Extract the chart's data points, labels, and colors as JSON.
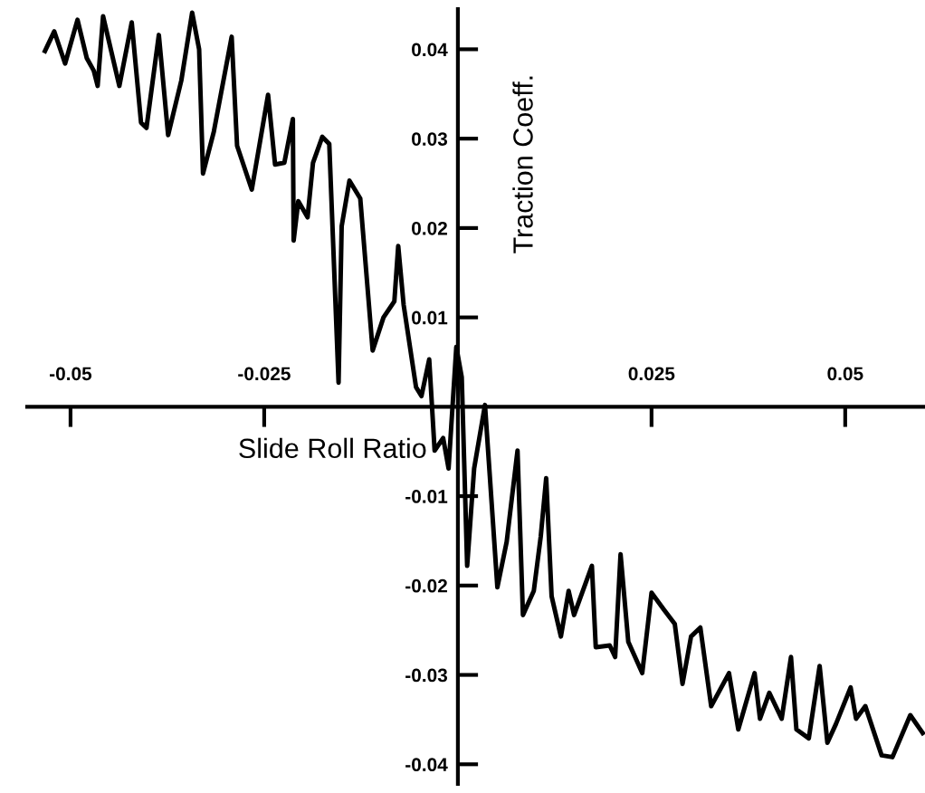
{
  "chart_data": {
    "type": "line",
    "xlabel": "Slide Roll Ratio",
    "ylabel": "Traction Coeff.",
    "xlim": [
      -0.0556,
      0.0603
    ],
    "ylim": [
      -0.0422,
      0.0445
    ],
    "xticks": [
      -0.05,
      -0.025,
      0.025,
      0.05
    ],
    "yticks": [
      -0.04,
      -0.03,
      -0.02,
      -0.01,
      0.01,
      0.02,
      0.03,
      0.04
    ],
    "grid": false,
    "marker": "none",
    "line_style": "solid",
    "series": [
      {
        "color": "#000000",
        "x": [
          -0.0533,
          -0.0521,
          -0.0507,
          -0.0491,
          -0.0479,
          -0.047,
          -0.0465,
          -0.0458,
          -0.0437,
          -0.0421,
          -0.0409,
          -0.0402,
          -0.0386,
          -0.0374,
          -0.0357,
          -0.0343,
          -0.0334,
          -0.0329,
          -0.0315,
          -0.0292,
          -0.0285,
          -0.0266,
          -0.0245,
          -0.0236,
          -0.0224,
          -0.0213,
          -0.0212,
          -0.0206,
          -0.0194,
          -0.0187,
          -0.0175,
          -0.0166,
          -0.0154,
          -0.015,
          -0.014,
          -0.0126,
          -0.011,
          -0.0096,
          -0.0082,
          -0.0077,
          -0.007,
          -0.0054,
          -0.0047,
          -0.0037,
          -0.003,
          -0.0019,
          -0.0012,
          -0.0002,
          0.0005,
          0.0012,
          0.0021,
          0.0035,
          0.0051,
          0.0063,
          0.0077,
          0.0084,
          0.0098,
          0.0107,
          0.0114,
          0.0121,
          0.0133,
          0.0143,
          0.015,
          0.0173,
          0.0178,
          0.0196,
          0.0203,
          0.021,
          0.022,
          0.0238,
          0.025,
          0.0266,
          0.028,
          0.029,
          0.0301,
          0.0313,
          0.0327,
          0.035,
          0.0362,
          0.0383,
          0.039,
          0.0402,
          0.0418,
          0.043,
          0.0437,
          0.0453,
          0.0467,
          0.0477,
          0.0488,
          0.0507,
          0.0514,
          0.0526,
          0.0547,
          0.0561,
          0.0584,
          0.06
        ],
        "values": [
          0.0398,
          0.042,
          0.0384,
          0.0433,
          0.039,
          0.0376,
          0.0359,
          0.0437,
          0.0359,
          0.043,
          0.0318,
          0.0312,
          0.0416,
          0.0304,
          0.0365,
          0.0441,
          0.04,
          0.0261,
          0.0308,
          0.0414,
          0.0292,
          0.0243,
          0.0349,
          0.0271,
          0.0273,
          0.0322,
          0.0186,
          0.023,
          0.0212,
          0.0273,
          0.0302,
          0.0294,
          0.0027,
          0.0202,
          0.0253,
          0.0233,
          0.0063,
          0.01,
          0.0118,
          0.018,
          0.0114,
          0.0022,
          0.0012,
          0.0053,
          -0.0049,
          -0.0035,
          -0.0069,
          0.0067,
          0.0033,
          -0.0178,
          -0.0069,
          0.0002,
          -0.0202,
          -0.0151,
          -0.0049,
          -0.0233,
          -0.0206,
          -0.0145,
          -0.008,
          -0.0212,
          -0.0257,
          -0.0206,
          -0.0233,
          -0.0178,
          -0.0269,
          -0.0267,
          -0.028,
          -0.0165,
          -0.0263,
          -0.0298,
          -0.0208,
          -0.0227,
          -0.0243,
          -0.031,
          -0.0257,
          -0.0247,
          -0.0335,
          -0.0298,
          -0.0361,
          -0.0298,
          -0.0349,
          -0.032,
          -0.0349,
          -0.028,
          -0.0361,
          -0.0371,
          -0.029,
          -0.0376,
          -0.0355,
          -0.0314,
          -0.0349,
          -0.0335,
          -0.039,
          -0.0392,
          -0.0345,
          -0.0365
        ]
      }
    ]
  }
}
